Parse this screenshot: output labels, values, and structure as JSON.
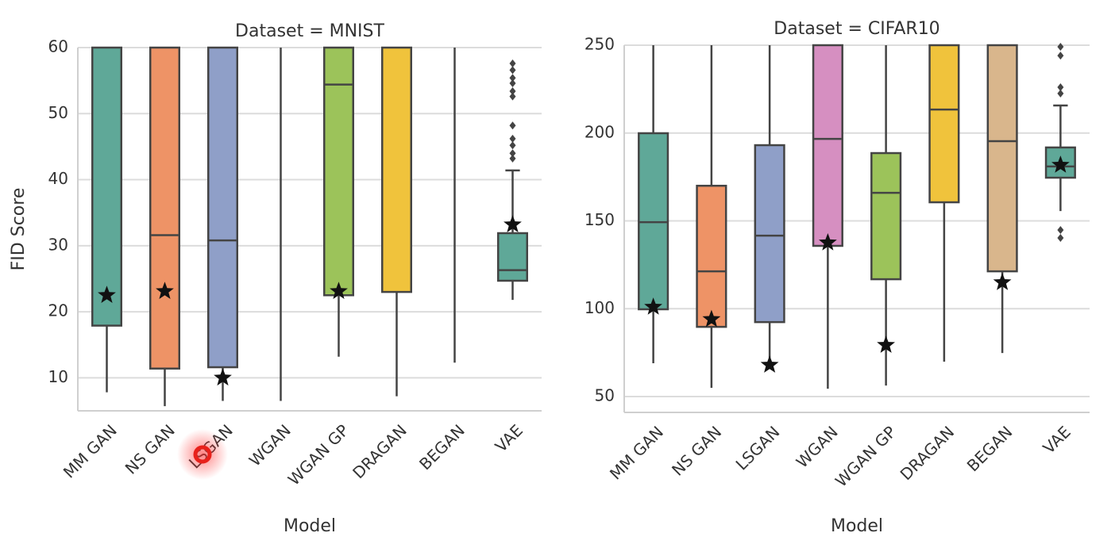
{
  "chart_data": [
    {
      "type": "box",
      "title": "Dataset = MNIST",
      "x_label": "Model",
      "y_label": "FID Score",
      "categories": [
        "MM GAN",
        "NS GAN",
        "LSGAN",
        "WGAN",
        "WGAN GP",
        "DRAGAN",
        "BEGAN",
        "VAE"
      ],
      "colors": [
        "#5fa898",
        "#ee9366",
        "#8f9fc8",
        "#d68fc1",
        "#9cc35a",
        "#f0c33c",
        "#d9b68c",
        "#5fa898"
      ],
      "whisker_low": [
        7.8,
        5.7,
        6.5,
        6.5,
        13.2,
        7.2,
        12.3,
        21.8
      ],
      "q1": [
        17.9,
        11.4,
        11.6,
        null,
        22.5,
        23.0,
        null,
        24.7
      ],
      "median": [
        null,
        31.6,
        30.8,
        null,
        54.4,
        null,
        null,
        26.3
      ],
      "q3": [
        null,
        null,
        null,
        null,
        null,
        null,
        null,
        31.9
      ],
      "whisker_high": [
        null,
        null,
        null,
        null,
        null,
        null,
        null,
        41.4
      ],
      "star": [
        22.5,
        23.1,
        10,
        null,
        23.1,
        null,
        null,
        33.2
      ],
      "outliers": [
        [],
        [],
        [],
        [],
        [],
        [],
        [],
        [
          57.6,
          56.6,
          55.4,
          54.6,
          53.4,
          52.6,
          48.2,
          46.2,
          45.2,
          44.0,
          43.2
        ]
      ],
      "ylim": [
        5,
        60
      ],
      "yticks": [
        10,
        20,
        30,
        40,
        50,
        60
      ],
      "grid": true
    },
    {
      "type": "box",
      "title": "Dataset = CIFAR10",
      "x_label": "Model",
      "categories": [
        "MM GAN",
        "NS GAN",
        "LSGAN",
        "WGAN",
        "WGAN GP",
        "DRAGAN",
        "BEGAN",
        "VAE"
      ],
      "colors": [
        "#5fa898",
        "#ee9366",
        "#8f9fc8",
        "#d68fc1",
        "#9cc35a",
        "#f0c33c",
        "#d9b68c",
        "#5fa898"
      ],
      "whisker_low": [
        69,
        55,
        68.5,
        54.5,
        56.3,
        69.9,
        74.8,
        155.6
      ],
      "q1": [
        99.7,
        89.7,
        92.4,
        135.8,
        116.8,
        160.6,
        121.3,
        174.6
      ],
      "median": [
        149.3,
        121.3,
        141.6,
        196.7,
        166,
        213.4,
        195.4,
        181
      ],
      "q3": [
        199.9,
        170,
        193.1,
        null,
        188.6,
        null,
        null,
        191.8
      ],
      "whisker_high": [
        null,
        null,
        null,
        null,
        null,
        null,
        null,
        215.7
      ],
      "star": [
        101,
        94,
        68,
        137.6,
        79.3,
        null,
        115,
        181.8
      ],
      "outliers": [
        [],
        [],
        [],
        [],
        [],
        [],
        [],
        [
          249.1,
          244.1,
          226.1,
          222.5,
          144.8,
          140.3
        ]
      ],
      "ylim": [
        41,
        250
      ],
      "yticks": [
        50,
        100,
        150,
        200,
        250
      ],
      "grid": true
    }
  ]
}
